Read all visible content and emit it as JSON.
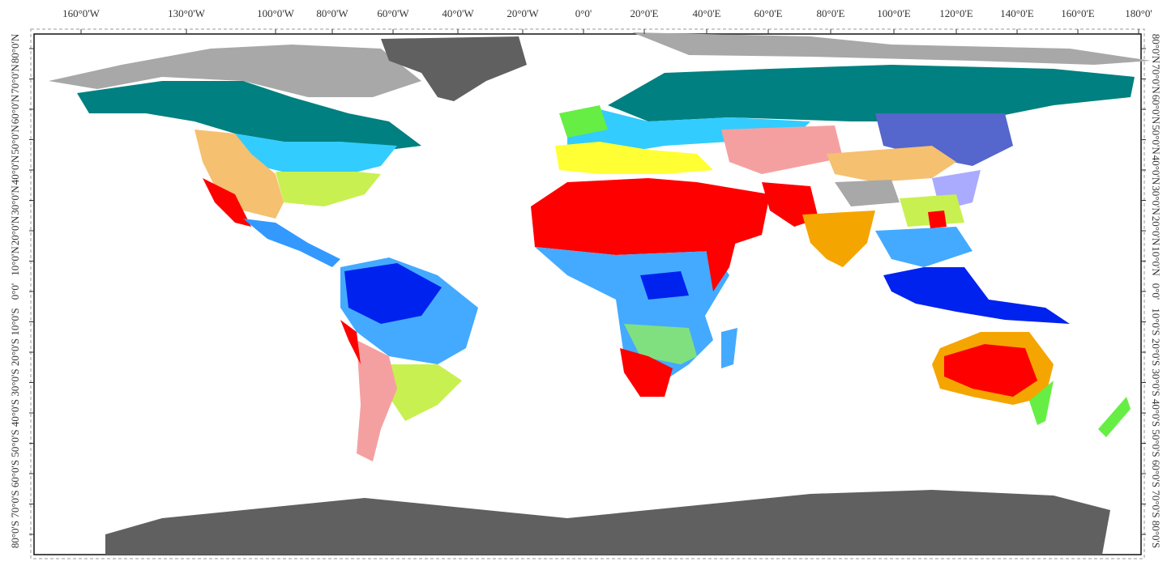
{
  "map": {
    "longitude_labels": [
      "160°0'W",
      "130°0'W",
      "100°0'W",
      "80°0'W",
      "60°0'W",
      "40°0'W",
      "20°0'W",
      "0°0'",
      "20°0'E",
      "40°0'E",
      "60°0'E",
      "80°0'E",
      "100°0'E",
      "120°0'E",
      "140°0'E",
      "160°0'E",
      "180°0'"
    ],
    "latitude_labels_left": [
      "80°0'N",
      "70°0'N",
      "60°0'N",
      "50°0'N",
      "40°0'N",
      "30°0'N",
      "20°0'N",
      "10°0'N",
      "0°0'",
      "10°0'S",
      "20°0'S",
      "30°0'S",
      "40°0'S",
      "50°0'S",
      "60°0'S",
      "70°0'S",
      "80°0'S"
    ],
    "latitude_labels_right": [
      "80°0'N",
      "70°0'N",
      "60°0'N",
      "50°0'N",
      "40°0'N",
      "30°0'N",
      "20°0'N",
      "10°0'N",
      "0°0'",
      "10°0'S",
      "20°0'S",
      "30°0'S",
      "40°0'S",
      "50°0'S",
      "60°0'S",
      "70°0'S",
      "80°0'S"
    ]
  }
}
